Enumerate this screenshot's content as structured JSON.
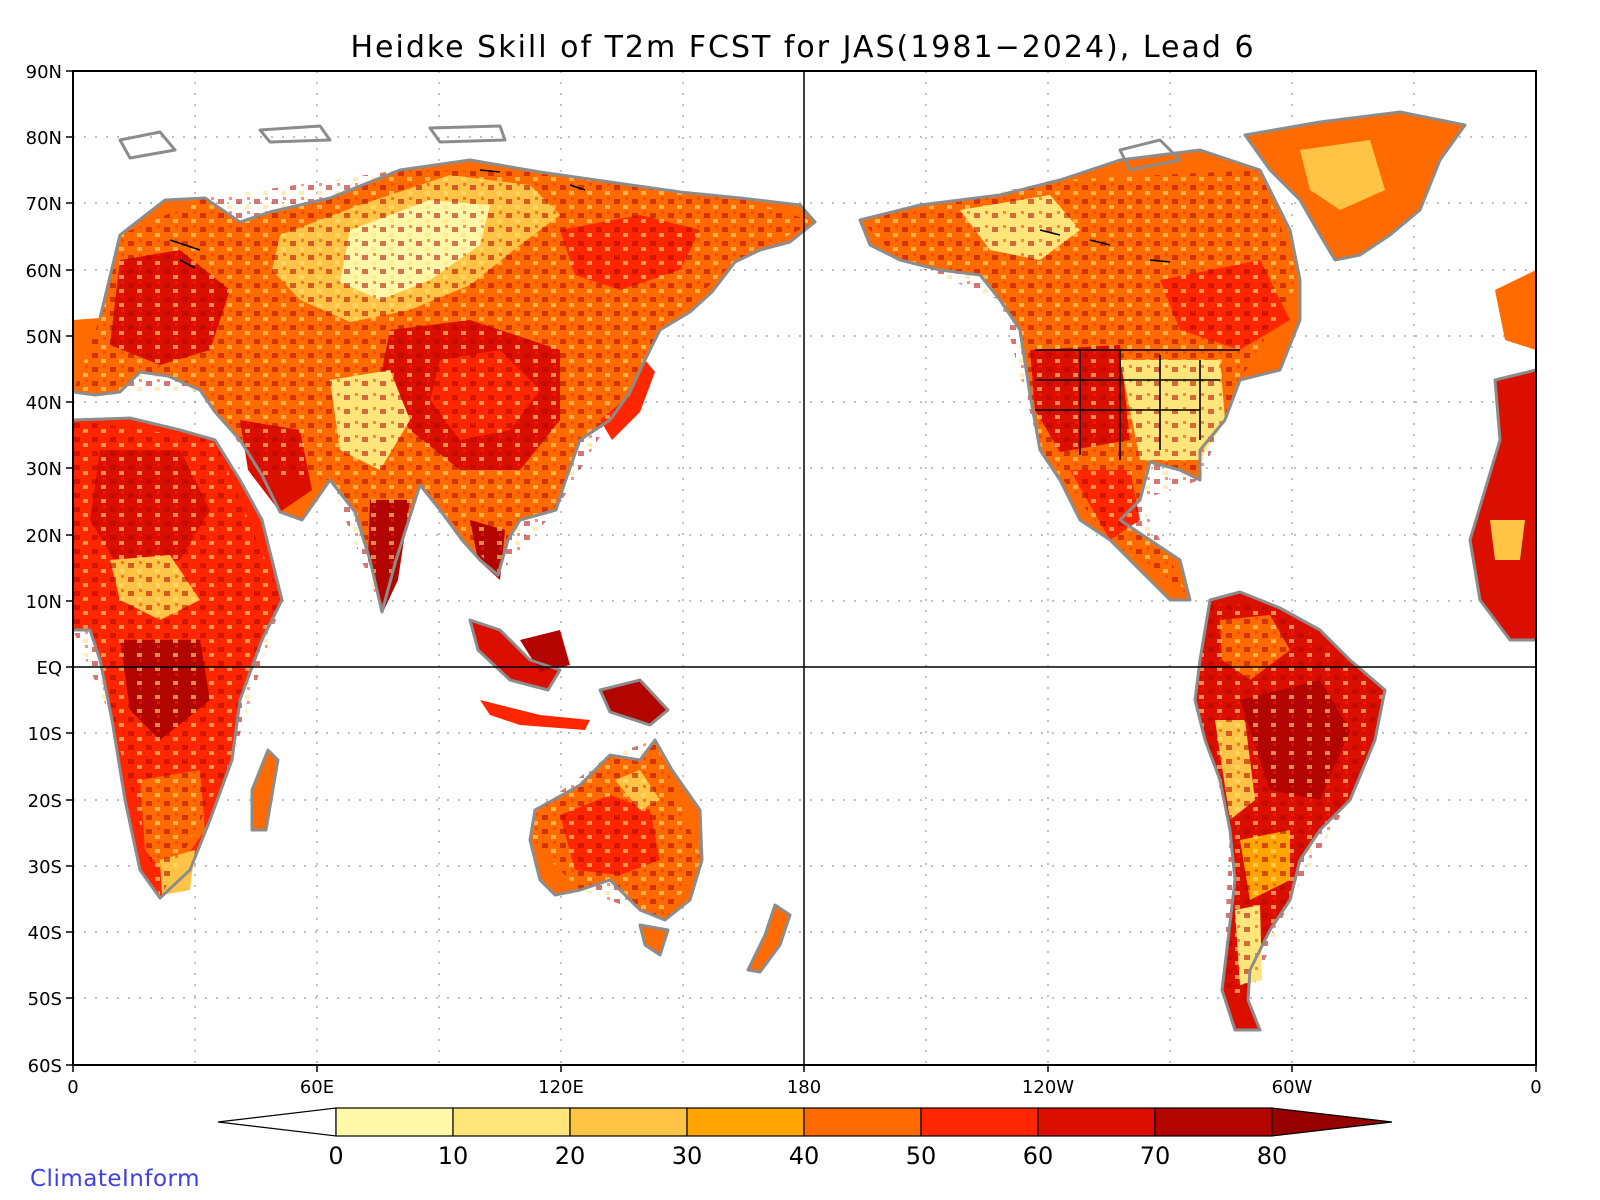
{
  "title": "Heidke Skill of T2m FCST for JAS(1981−2024), Lead 6",
  "credit": "ClimateInform",
  "lat_labels": [
    "90N",
    "80N",
    "70N",
    "60N",
    "50N",
    "40N",
    "30N",
    "20N",
    "10N",
    "EQ",
    "10S",
    "20S",
    "30S",
    "40S",
    "50S",
    "60S"
  ],
  "lon_labels": [
    "0",
    "60E",
    "120E",
    "180",
    "120W",
    "60W",
    "0"
  ],
  "colorbar": {
    "labels": [
      "0",
      "10",
      "20",
      "30",
      "40",
      "50",
      "60",
      "70",
      "80"
    ],
    "colors": [
      "#fff8a8",
      "#ffe57a",
      "#ffc445",
      "#ffa400",
      "#ff6b00",
      "#ff2600",
      "#db0f00",
      "#b30500"
    ],
    "under_color": "#ffffff",
    "over_color": "#960000"
  },
  "land_colors": {
    "coast": "#8c8c8c",
    "borders": "#000000"
  }
}
